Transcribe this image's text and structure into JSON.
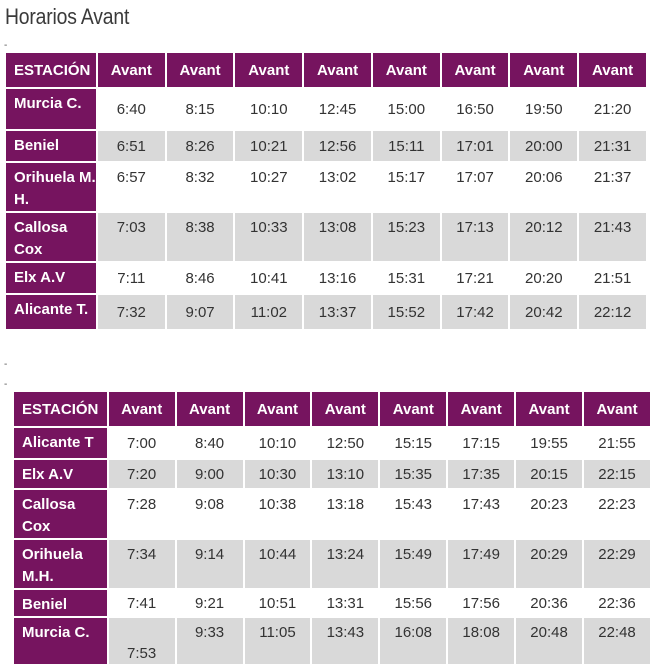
{
  "page_title": "Horarios Avant",
  "separators": [
    "-",
    "-",
    "-"
  ],
  "header": {
    "station_label": "ESTACIÓN",
    "train_label": "Avant"
  },
  "table1": {
    "rows": [
      {
        "station": "Murcia C.",
        "times": [
          "6:40",
          "8:15",
          "10:10",
          "12:45",
          "15:00",
          "16:50",
          "19:50",
          "21:20"
        ]
      },
      {
        "station": "Beniel",
        "times": [
          "6:51",
          "8:26",
          "10:21",
          "12:56",
          "15:11",
          "17:01",
          "20:00",
          "21:31"
        ]
      },
      {
        "station": "Orihuela M. H.",
        "times": [
          "6:57",
          "8:32",
          "10:27",
          "13:02",
          "15:17",
          "17:07",
          "20:06",
          "21:37"
        ]
      },
      {
        "station": "Callosa Cox",
        "times": [
          "7:03",
          "8:38",
          "10:33",
          "13:08",
          "15:23",
          "17:13",
          "20:12",
          "21:43"
        ]
      },
      {
        "station": "Elx A.V",
        "times": [
          "7:11",
          "8:46",
          "10:41",
          "13:16",
          "15:31",
          "17:21",
          "20:20",
          "21:51"
        ]
      },
      {
        "station": "Alicante T.",
        "times": [
          "7:32",
          "9:07",
          "11:02",
          "13:37",
          "15:52",
          "17:42",
          "20:42",
          "22:12"
        ]
      }
    ]
  },
  "table2": {
    "rows": [
      {
        "station": "Alicante T",
        "times": [
          "7:00",
          "8:40",
          "10:10",
          "12:50",
          "15:15",
          "17:15",
          "19:55",
          "21:55"
        ]
      },
      {
        "station": "Elx A.V",
        "times": [
          "7:20",
          "9:00",
          "10:30",
          "13:10",
          "15:35",
          "17:35",
          "20:15",
          "22:15"
        ]
      },
      {
        "station": "Callosa Cox",
        "times": [
          "7:28",
          "9:08",
          "10:38",
          "13:18",
          "15:43",
          "17:43",
          "20:23",
          "22:23"
        ]
      },
      {
        "station": "Orihuela M.H.",
        "times": [
          "7:34",
          "9:14",
          "10:44",
          "13:24",
          "15:49",
          "17:49",
          "20:29",
          "22:29"
        ]
      },
      {
        "station": "Beniel",
        "times": [
          "7:41",
          "9:21",
          "10:51",
          "13:31",
          "15:56",
          "17:56",
          "20:36",
          "22:36"
        ]
      },
      {
        "station": "Murcia C.",
        "times": [
          "7:53",
          "9:33",
          "11:05",
          "13:43",
          "16:08",
          "18:08",
          "20:48",
          "22:48"
        ]
      }
    ]
  },
  "colors": {
    "header_bg": "#76145f",
    "header_text": "#ffffff",
    "stripe": "#d9d9d9"
  }
}
